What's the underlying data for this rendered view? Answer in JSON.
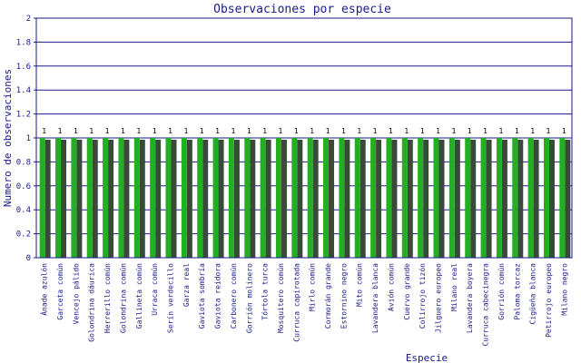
{
  "chart_data": {
    "type": "bar",
    "title": "Observaciones por especie",
    "xlabel": "Especie",
    "ylabel": "Numero de observaciones",
    "ylim": [
      0,
      2
    ],
    "yticks": [
      "0",
      "0.2",
      "0.4",
      "0.6",
      "0.8",
      "1",
      "1.2",
      "1.4",
      "1.6",
      "1.8",
      "2"
    ],
    "grid": true,
    "categories": [
      "Ánade azulón",
      "Garceta común",
      "Vencejo pálido",
      "Golondrina dáurica",
      "Herrerillo común",
      "Golondrina común",
      "Gallineta común",
      "Urraca común",
      "Serín verdecillo",
      "Garza real",
      "Gaviota sombría",
      "Gaviota reidora",
      "Carbonero común",
      "Gorrión molinero",
      "Tórtola turca",
      "Mosquitero común",
      "Curruca capirotada",
      "Mirlo común",
      "Cormorán grande",
      "Estornino negro",
      "Mito común",
      "Lavandera blanca",
      "Avión común",
      "Cuervo grande",
      "Colirrojo tizón",
      "Jilguero europeo",
      "Milano real",
      "Lavandera boyera",
      "Curruca cabecinegra",
      "Gorrión común",
      "Paloma torcaz",
      "Cigüeña blanca",
      "Petirrojo europeo",
      "Milano negro"
    ],
    "values": [
      1,
      1,
      1,
      1,
      1,
      1,
      1,
      1,
      1,
      1,
      1,
      1,
      1,
      1,
      1,
      1,
      1,
      1,
      1,
      1,
      1,
      1,
      1,
      1,
      1,
      1,
      1,
      1,
      1,
      1,
      1,
      1,
      1,
      1
    ],
    "data_labels": [
      "1",
      "1",
      "1",
      "1",
      "1",
      "1",
      "1",
      "1",
      "1",
      "1",
      "1",
      "1",
      "1",
      "1",
      "1",
      "1",
      "1",
      "1",
      "1",
      "1",
      "1",
      "1",
      "1",
      "1",
      "1",
      "1",
      "1",
      "1",
      "1",
      "1",
      "1",
      "1",
      "1",
      "1"
    ],
    "colors": {
      "bar": "#22b022",
      "shadow": "#3a4a3a",
      "grid": "#1a1a8c",
      "text": "#1a1a8c"
    }
  }
}
